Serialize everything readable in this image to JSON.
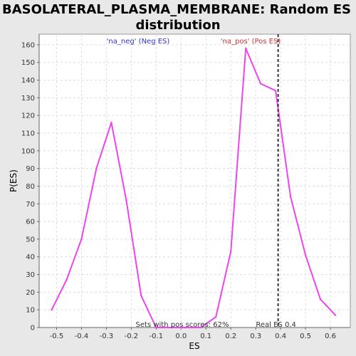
{
  "chart_data": {
    "type": "line",
    "title": "BASOLATERAL_PLASMA_MEMBRANE: Random ES distribution",
    "title_lines": [
      "BASOLATERAL_PLASMA_MEMBRANE: Random ES",
      "distribution"
    ],
    "xlabel": "ES",
    "ylabel": "P(ES)",
    "xlim": [
      -0.57,
      0.68
    ],
    "ylim": [
      0,
      166
    ],
    "x_ticks": [
      -0.5,
      -0.4,
      -0.3,
      -0.2,
      -0.1,
      0.0,
      0.1,
      0.2,
      0.3,
      0.4,
      0.5,
      0.6
    ],
    "x_tick_labels": [
      "-0.5",
      "-0.4",
      "-0.3",
      "-0.2",
      "-0.1",
      "0.0",
      "0.1",
      "0.2",
      "0.3",
      "0.4",
      "0.5",
      "0.6"
    ],
    "y_ticks": [
      0,
      10,
      20,
      30,
      40,
      50,
      60,
      70,
      80,
      90,
      100,
      110,
      120,
      130,
      140,
      150,
      160
    ],
    "grid": true,
    "series": [
      {
        "color": "#ee44ee",
        "x": [
          -0.52,
          -0.46,
          -0.4,
          -0.34,
          -0.28,
          -0.22,
          -0.16,
          -0.1,
          -0.04,
          0.02,
          0.08,
          0.14,
          0.2,
          0.26,
          0.32,
          0.38,
          0.44,
          0.5,
          0.56,
          0.62
        ],
        "y": [
          10,
          27,
          50,
          90,
          116,
          72,
          18,
          0,
          0,
          0,
          0,
          6,
          43,
          158,
          138,
          134,
          74,
          41,
          16,
          7
        ]
      }
    ],
    "reference_line": {
      "x": 0.39,
      "label": "Real ES 0.4"
    },
    "annotations": {
      "neg_label": "'na_neg' (Neg ES)",
      "pos_label": "'na_pos' (Pos ES)",
      "footer": "Sets with pos scores: 62%"
    },
    "colors": {
      "line": "#ee44ee",
      "neg_label": "#3333cc",
      "pos_label": "#cc3333",
      "background": "#e8e8e8",
      "plot_background": "#ffffff"
    }
  }
}
